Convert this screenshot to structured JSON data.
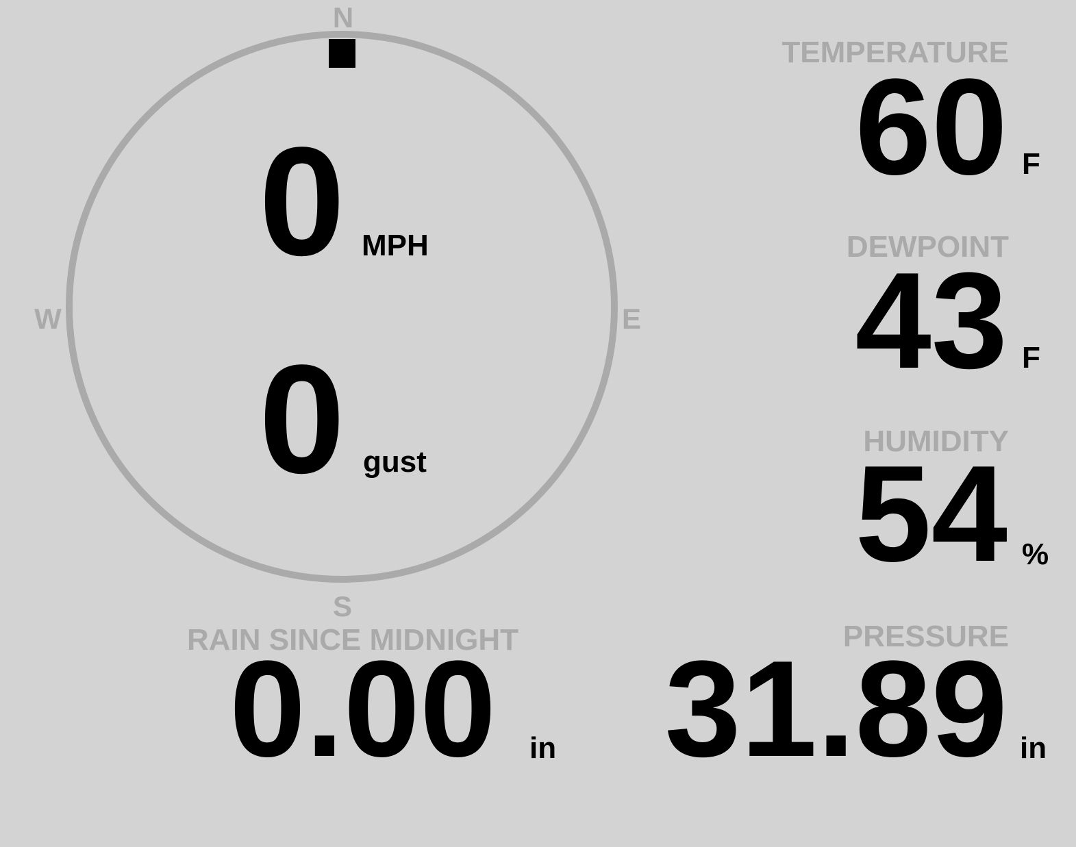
{
  "colors": {
    "background": "#d3d3d3",
    "label": "#aaaaaa",
    "value": "#000000"
  },
  "wind": {
    "compass": {
      "north": "N",
      "east": "E",
      "south": "S",
      "west": "W"
    },
    "direction_degrees": 0,
    "speed": "0",
    "speed_unit": "MPH",
    "gust": "0",
    "gust_unit": "gust"
  },
  "temperature": {
    "label": "TEMPERATURE",
    "value": "60",
    "unit": "F"
  },
  "dewpoint": {
    "label": "DEWPOINT",
    "value": "43",
    "unit": "F"
  },
  "humidity": {
    "label": "HUMIDITY",
    "value": "54",
    "unit": "%"
  },
  "rain": {
    "label": "RAIN SINCE MIDNIGHT",
    "value": "0.00",
    "unit": "in"
  },
  "pressure": {
    "label": "PRESSURE",
    "value": "31.89",
    "unit": "in"
  }
}
